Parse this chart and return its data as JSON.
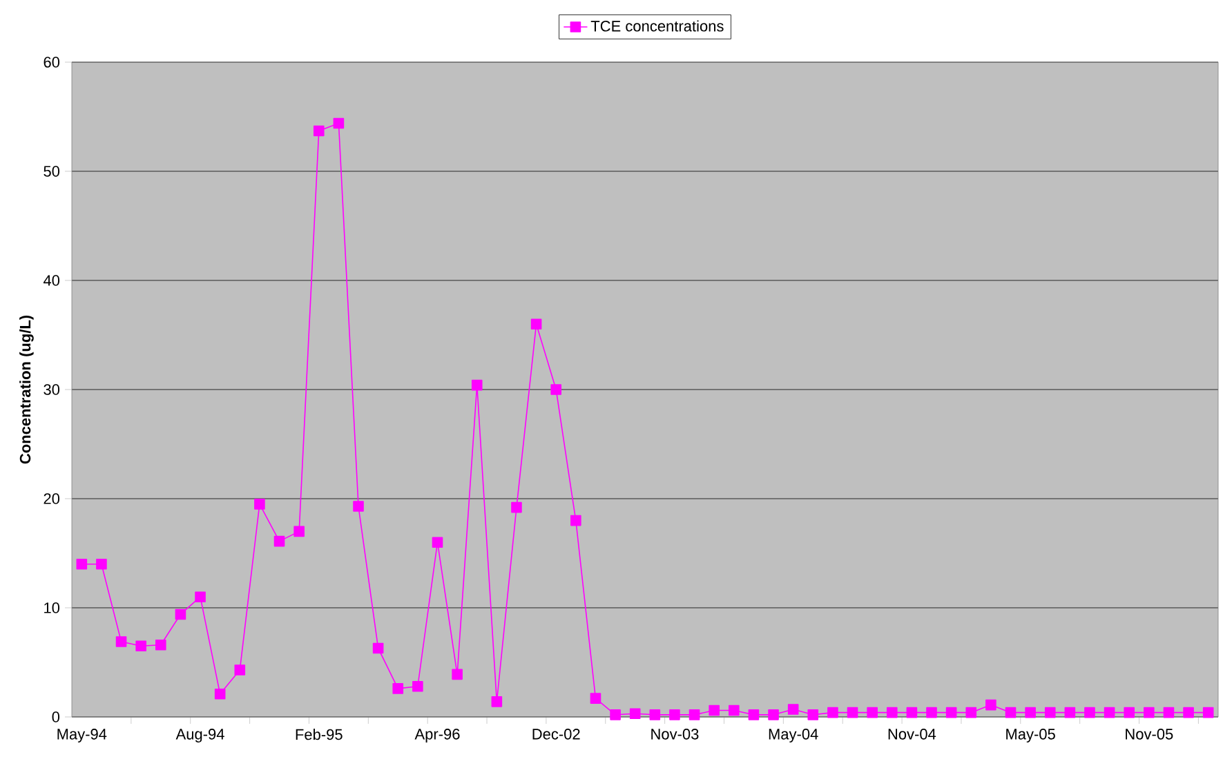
{
  "chart_data": {
    "type": "line",
    "ylabel": "Concentration (ug/L)",
    "categories": [
      "May-94",
      null,
      null,
      null,
      null,
      null,
      "Aug-94",
      null,
      null,
      null,
      null,
      null,
      "Feb-95",
      null,
      null,
      null,
      null,
      null,
      "Apr-96",
      null,
      null,
      null,
      null,
      null,
      "Dec-02",
      null,
      null,
      null,
      null,
      null,
      "Nov-03",
      null,
      null,
      null,
      null,
      null,
      "May-04",
      null,
      null,
      null,
      null,
      null,
      "Nov-04",
      null,
      null,
      null,
      null,
      null,
      "May-05",
      null,
      null,
      null,
      null,
      null,
      "Nov-05",
      null,
      null,
      null
    ],
    "series": [
      {
        "name": "TCE concentrations",
        "color": "#ff00ff",
        "values": [
          14,
          14,
          6.9,
          6.5,
          6.6,
          9.4,
          11,
          2.1,
          4.3,
          19.5,
          16.1,
          17,
          53.7,
          54.4,
          19.3,
          6.3,
          2.6,
          2.8,
          16,
          3.9,
          30.4,
          1.4,
          19.2,
          36,
          30,
          18,
          1.7,
          0.2,
          0.3,
          0.2,
          0.2,
          0.2,
          0.6,
          0.6,
          0.2,
          0.2,
          0.7,
          0.2,
          0.4,
          0.4,
          0.4,
          0.4,
          0.4,
          0.4,
          0.4,
          0.4,
          1.1,
          0.4,
          0.4,
          0.4,
          0.4,
          0.4,
          0.4,
          0.4,
          0.4,
          0.4,
          0.4,
          0.4
        ]
      }
    ],
    "ylim": [
      0,
      60
    ],
    "yticks": [
      0,
      10,
      20,
      30,
      40,
      50,
      60
    ],
    "grid": "y",
    "legend": "top",
    "marker": "square",
    "line_style": "solid"
  }
}
